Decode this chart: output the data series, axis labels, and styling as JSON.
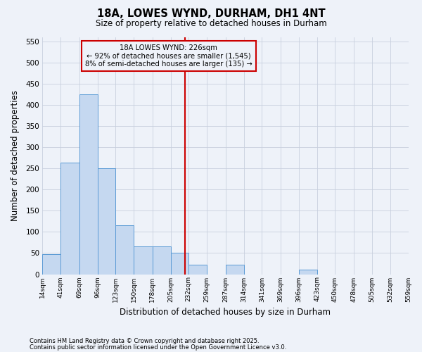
{
  "title": "18A, LOWES WYND, DURHAM, DH1 4NT",
  "subtitle": "Size of property relative to detached houses in Durham",
  "xlabel": "Distribution of detached houses by size in Durham",
  "ylabel": "Number of detached properties",
  "footnote1": "Contains HM Land Registry data © Crown copyright and database right 2025.",
  "footnote2": "Contains public sector information licensed under the Open Government Licence v3.0.",
  "property_label": "18A LOWES WYND: 226sqm",
  "annotation_line1": "← 92% of detached houses are smaller (1,545)",
  "annotation_line2": "8% of semi-detached houses are larger (135) →",
  "property_size": 226,
  "bar_edges": [
    14,
    41,
    69,
    96,
    123,
    150,
    178,
    205,
    232,
    259,
    287,
    314,
    341,
    369,
    396,
    423,
    450,
    478,
    505,
    532,
    559
  ],
  "bar_heights": [
    47,
    263,
    425,
    250,
    115,
    65,
    65,
    50,
    22,
    0,
    22,
    0,
    0,
    0,
    10,
    0,
    0,
    0,
    0,
    0
  ],
  "bar_color": "#c5d8f0",
  "bar_edge_color": "#5b9bd5",
  "vline_color": "#cc0000",
  "annotation_box_color": "#cc0000",
  "background_color": "#eef2f9",
  "grid_color": "#c8d0de",
  "ylim": [
    0,
    560
  ],
  "yticks": [
    0,
    50,
    100,
    150,
    200,
    250,
    300,
    350,
    400,
    450,
    500,
    550
  ]
}
